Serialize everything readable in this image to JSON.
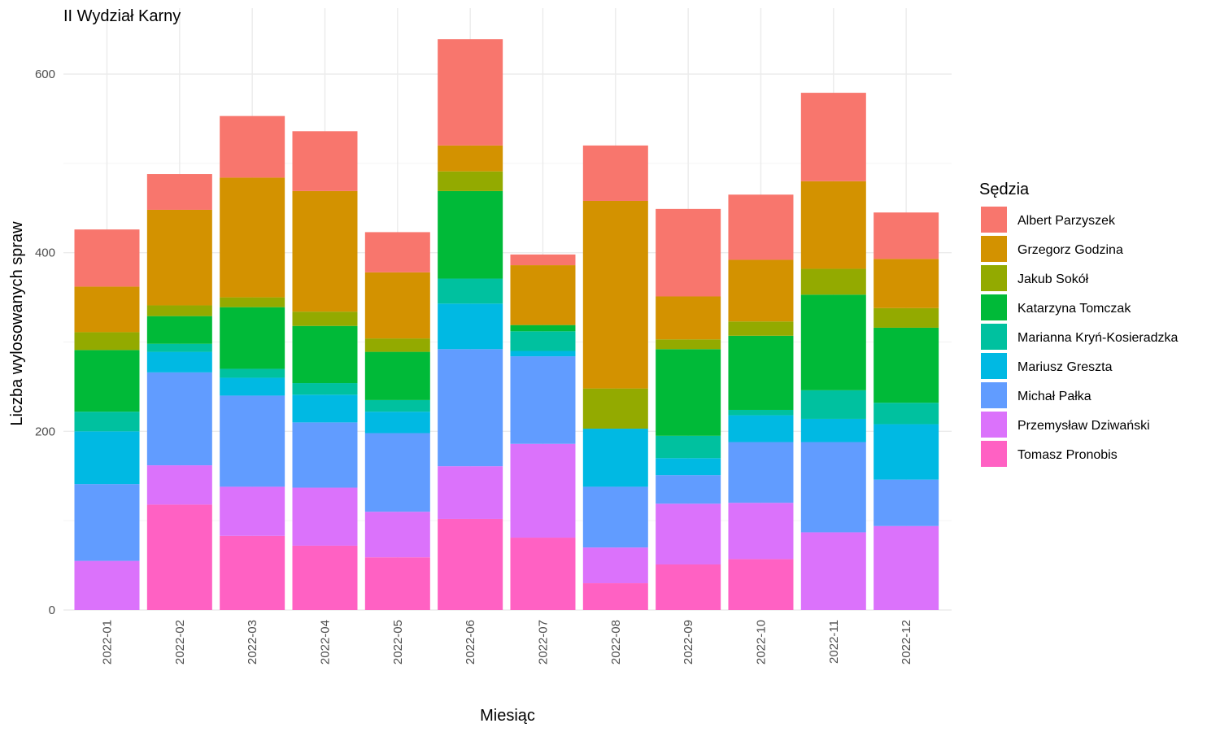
{
  "chart_data": {
    "type": "bar",
    "stacked": true,
    "title": "II Wydział Karny",
    "xlabel": "Miesiąc",
    "ylabel": "Liczba wylosowanych spraw",
    "ylim": [
      0,
      640
    ],
    "yticks": [
      0,
      200,
      400,
      600
    ],
    "grid": true,
    "legend_position": "right",
    "legend_title": "Sędzia",
    "categories": [
      "2022-01",
      "2022-02",
      "2022-03",
      "2022-04",
      "2022-05",
      "2022-06",
      "2022-07",
      "2022-08",
      "2022-09",
      "2022-10",
      "2022-11",
      "2022-12"
    ],
    "series": [
      {
        "name": "Albert Parzyszek",
        "color": "#F8766D",
        "values": [
          64,
          40,
          69,
          67,
          45,
          119,
          12,
          62,
          98,
          73,
          99,
          52
        ]
      },
      {
        "name": "Grzegorz Godzina",
        "color": "#D39200",
        "values": [
          51,
          107,
          134,
          135,
          74,
          29,
          67,
          210,
          48,
          69,
          98,
          55
        ]
      },
      {
        "name": "Jakub Sokół",
        "color": "#93AA00",
        "values": [
          20,
          12,
          11,
          16,
          15,
          22,
          0,
          45,
          11,
          16,
          29,
          22
        ]
      },
      {
        "name": "Katarzyna Tomczak",
        "color": "#00BA38",
        "values": [
          69,
          31,
          69,
          64,
          54,
          98,
          7,
          0,
          97,
          83,
          107,
          84
        ]
      },
      {
        "name": "Marianna Kryń-Kosieradzka",
        "color": "#00C19F",
        "values": [
          22,
          9,
          10,
          13,
          13,
          28,
          22,
          0,
          25,
          6,
          32,
          24
        ]
      },
      {
        "name": "Mariusz Greszta",
        "color": "#00B9E3",
        "values": [
          59,
          23,
          20,
          31,
          24,
          51,
          6,
          65,
          19,
          30,
          26,
          62
        ]
      },
      {
        "name": "Michał Pałka",
        "color": "#619CFF",
        "values": [
          86,
          104,
          102,
          73,
          88,
          131,
          98,
          68,
          32,
          68,
          101,
          52
        ]
      },
      {
        "name": "Przemysław Dziwański",
        "color": "#DB72FB",
        "values": [
          55,
          44,
          55,
          65,
          51,
          59,
          105,
          40,
          68,
          63,
          87,
          94
        ]
      },
      {
        "name": "Tomasz Pronobis",
        "color": "#FF61C3",
        "values": [
          0,
          118,
          83,
          72,
          59,
          102,
          81,
          30,
          51,
          57,
          0,
          0
        ]
      }
    ]
  }
}
